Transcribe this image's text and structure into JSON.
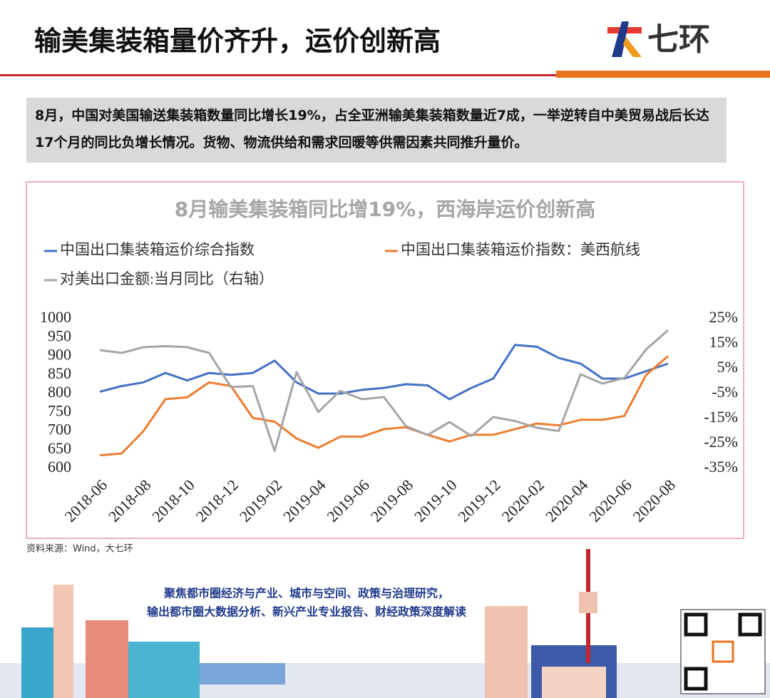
{
  "header": {
    "title": "输美集装箱量价齐升，运价创新高",
    "logo": "七环"
  },
  "summary": "8月，中国对美国输送集装箱数量同比增长19%，占全亚洲输美集装箱数量近7成，一举逆转自中美贸易战后长达17个月的同比负增长情况。货物、物流供给和需求回暖等供需因素共同推升量价。",
  "chart_data": {
    "type": "line",
    "title": "8月输美集装箱同比增19%，西海岸运价创新高",
    "categories": [
      "2018-06",
      null,
      "2018-08",
      null,
      "2018-10",
      null,
      "2018-12",
      null,
      "2019-02",
      null,
      "2019-04",
      null,
      "2019-06",
      null,
      "2019-08",
      null,
      "2019-10",
      null,
      "2019-12",
      null,
      "2020-02",
      null,
      "2020-04",
      null,
      "2020-06",
      null,
      "2020-08"
    ],
    "series": [
      {
        "name": "中国出口集装箱运价综合指数",
        "color": "#4472c4",
        "values": [
          805,
          820,
          830,
          855,
          835,
          855,
          850,
          855,
          888,
          830,
          800,
          800,
          810,
          815,
          825,
          822,
          785,
          815,
          840,
          930,
          925,
          895,
          880,
          840,
          840,
          860,
          880
        ]
      },
      {
        "name": "中国出口集装箱运价指数：美西航线",
        "color": "#ed7d31",
        "values": [
          635,
          640,
          700,
          785,
          790,
          830,
          820,
          735,
          725,
          680,
          655,
          685,
          685,
          705,
          710,
          690,
          672,
          690,
          690,
          705,
          720,
          715,
          730,
          730,
          740,
          850,
          900
        ]
      },
      {
        "name": "对美出口金额:当月同比（右轴）",
        "color": "#a5a5a5",
        "axis": "y2",
        "values": [
          12.4,
          11.3,
          13.6,
          14,
          13.6,
          11.3,
          -2.4,
          -2,
          -28,
          3.6,
          -12.4,
          -3.9,
          -7.3,
          -6.4,
          -18,
          -21.6,
          -16.4,
          -22,
          -14.4,
          -16,
          -18.7,
          -20,
          2.7,
          -1,
          1.3,
          12.7,
          20.4
        ]
      }
    ],
    "ylim": [
      600,
      1000
    ],
    "yticks": [
      600,
      650,
      700,
      750,
      800,
      850,
      900,
      950,
      1000
    ],
    "y2lim": [
      -35,
      25
    ],
    "y2ticks": [
      {
        "value": -35,
        "label": "-35%"
      },
      {
        "value": -25,
        "label": "-25%"
      },
      {
        "value": -15,
        "label": "-15%"
      },
      {
        "value": -5,
        "label": "-5%"
      },
      {
        "value": 5,
        "label": "5%"
      },
      {
        "value": 15,
        "label": "15%"
      },
      {
        "value": 25,
        "label": "25%"
      }
    ],
    "grid": false
  },
  "source": "资料来源：Wind，大七环",
  "footer": {
    "line1": "聚焦都市圈经济与产业、城市与空间、政策与治理研究，",
    "line2": "输出都市圈大数据分析、新兴产业专业报告、财经政策深度解读"
  }
}
